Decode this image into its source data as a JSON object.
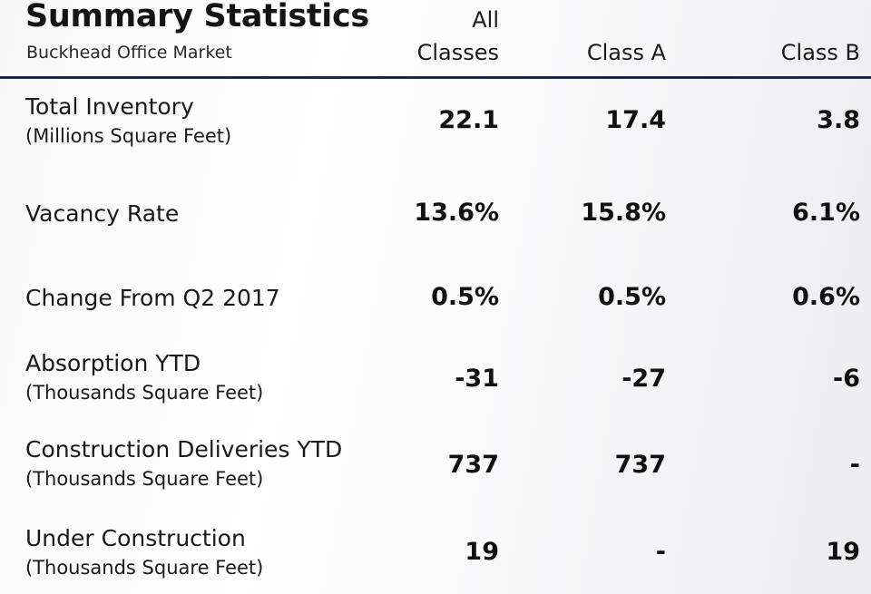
{
  "header": {
    "title": "Summary Statistics",
    "subtitle": "Buckhead Office Market",
    "columns": [
      "All\nClasses",
      "Class A",
      "Class B"
    ]
  },
  "rows": [
    {
      "label": "Total Inventory",
      "sublabel": "(Millions Square Feet)",
      "values": [
        "22.1",
        "17.4",
        "3.8"
      ]
    },
    {
      "label": "Vacancy Rate",
      "sublabel": "",
      "values": [
        "13.6%",
        "15.8%",
        "6.1%"
      ]
    },
    {
      "label": "Change From Q2 2017",
      "sublabel": "",
      "values": [
        "0.5%",
        "0.5%",
        "0.6%"
      ]
    },
    {
      "label": "Absorption YTD",
      "sublabel": "(Thousands Square Feet)",
      "values": [
        "-31",
        "-27",
        "-6"
      ]
    },
    {
      "label": "Construction Deliveries YTD",
      "sublabel": "(Thousands Square Feet)",
      "values": [
        "737",
        "737",
        "-"
      ]
    },
    {
      "label": "Under Construction",
      "sublabel": "(Thousands Square Feet)",
      "values": [
        "19",
        "-",
        "19"
      ]
    }
  ]
}
